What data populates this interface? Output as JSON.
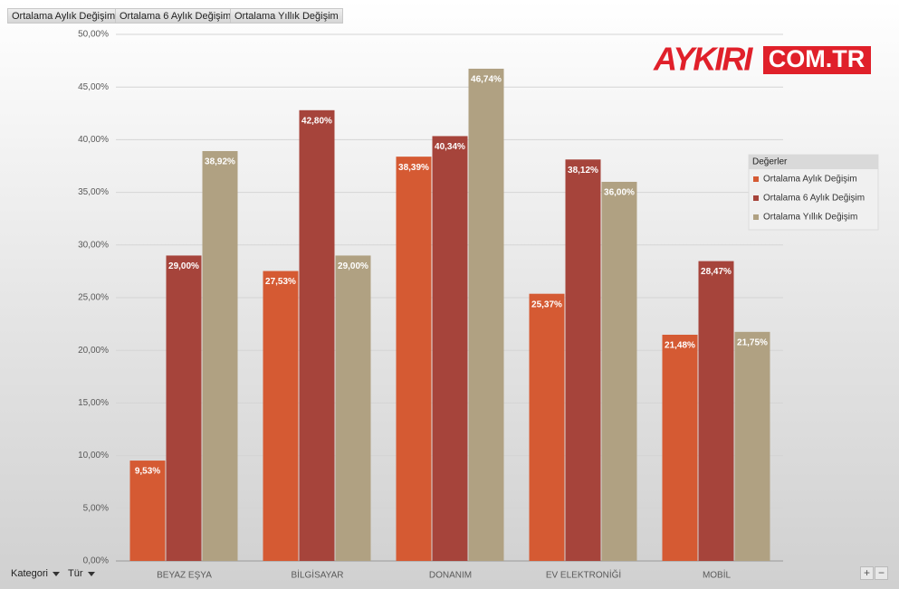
{
  "chart_data": {
    "type": "bar",
    "categories": [
      "BEYAZ EŞYA",
      "BİLGİSAYAR",
      "DONANIM",
      "EV ELEKTRONİĞİ",
      "MOBİL"
    ],
    "series": [
      {
        "name": "Ortalama Aylık Değişim",
        "color": "#d55a33",
        "values": [
          9.53,
          27.53,
          38.39,
          25.37,
          21.48
        ],
        "value_labels": [
          "9,53%",
          "27,53%",
          "38,39%",
          "25,37%",
          "21,48%"
        ]
      },
      {
        "name": "Ortalama 6 Aylık Değişim",
        "color": "#a6443b",
        "values": [
          29.0,
          42.8,
          40.34,
          38.12,
          28.47
        ],
        "value_labels": [
          "29,00%",
          "42,80%",
          "40,34%",
          "38,12%",
          "28,47%"
        ]
      },
      {
        "name": "Ortalama Yıllık Değişim",
        "color": "#b0a182",
        "values": [
          38.92,
          29.0,
          46.74,
          36.0,
          21.75
        ],
        "value_labels": [
          "38,92%",
          "29,00%",
          "46,74%",
          "36,00%",
          "21,75%"
        ]
      }
    ],
    "ylim": [
      0,
      50
    ],
    "yticks": [
      {
        "value": 0,
        "label": "0,00%"
      },
      {
        "value": 5,
        "label": "5,00%"
      },
      {
        "value": 10,
        "label": "10,00%"
      },
      {
        "value": 15,
        "label": "15,00%"
      },
      {
        "value": 20,
        "label": "20,00%"
      },
      {
        "value": 25,
        "label": "25,00%"
      },
      {
        "value": 30,
        "label": "30,00%"
      },
      {
        "value": 35,
        "label": "35,00%"
      },
      {
        "value": 40,
        "label": "40,00%"
      },
      {
        "value": 45,
        "label": "45,00%"
      },
      {
        "value": 50,
        "label": "50,00%"
      }
    ],
    "grid": true,
    "legend_title": "Değerler",
    "legend": "right"
  },
  "field_buttons": [
    "Ortalama Aylık Değişim",
    "Ortalama 6  Aylık Değişim",
    "Ortalama Yıllık  Değişim"
  ],
  "axis_buttons": [
    "Kategori",
    "Tür"
  ],
  "zoom_buttons": [
    "+",
    "−"
  ],
  "logo": {
    "left": "AYKIRI",
    "right": "COM.TR"
  }
}
